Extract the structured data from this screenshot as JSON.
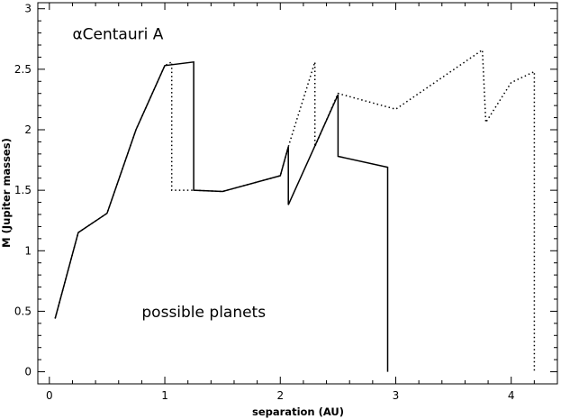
{
  "chart_data": {
    "type": "line",
    "title": "",
    "xlabel": "separation (AU)",
    "ylabel": "M (Jupiter masses)",
    "xlim": [
      -0.1,
      4.4
    ],
    "ylim": [
      -0.1,
      3.05
    ],
    "grid": false,
    "x_ticks": [
      0,
      1,
      2,
      3,
      4
    ],
    "x_tick_labels": [
      "0",
      "1",
      "2",
      "3",
      "4"
    ],
    "y_ticks": [
      0,
      0.5,
      1,
      1.5,
      2,
      2.5,
      3
    ],
    "y_tick_labels": [
      "0",
      "0.5",
      "1",
      "1.5",
      "2",
      "2.5",
      "3"
    ],
    "annotations": [
      {
        "text": "αCentauri A",
        "x": 0.2,
        "y": 2.75
      },
      {
        "text": "possible planets",
        "x": 0.8,
        "y": 0.45
      }
    ],
    "series": [
      {
        "style": "solid",
        "x": [
          0.05,
          0.25,
          0.5,
          0.75,
          1.0,
          1.25,
          1.25,
          1.5,
          2.0,
          2.07,
          2.07,
          2.5,
          2.5,
          2.93,
          2.93
        ],
        "y": [
          0.44,
          1.15,
          1.31,
          2.0,
          2.53,
          2.56,
          1.5,
          1.49,
          1.62,
          1.86,
          1.38,
          2.29,
          1.78,
          1.69,
          0.0
        ]
      },
      {
        "style": "dotted",
        "x": [
          0.05,
          0.25,
          0.5,
          0.75,
          1.0,
          1.06,
          1.06,
          1.25,
          1.5,
          2.0,
          2.07,
          2.3,
          2.3,
          2.5,
          3.0,
          3.75,
          3.78,
          4.0,
          4.2,
          4.2
        ],
        "y": [
          0.44,
          1.15,
          1.31,
          2.0,
          2.53,
          2.56,
          1.5,
          1.5,
          1.49,
          1.62,
          1.86,
          2.56,
          1.86,
          2.3,
          2.17,
          2.66,
          2.06,
          2.39,
          2.48,
          0.0
        ]
      }
    ]
  }
}
